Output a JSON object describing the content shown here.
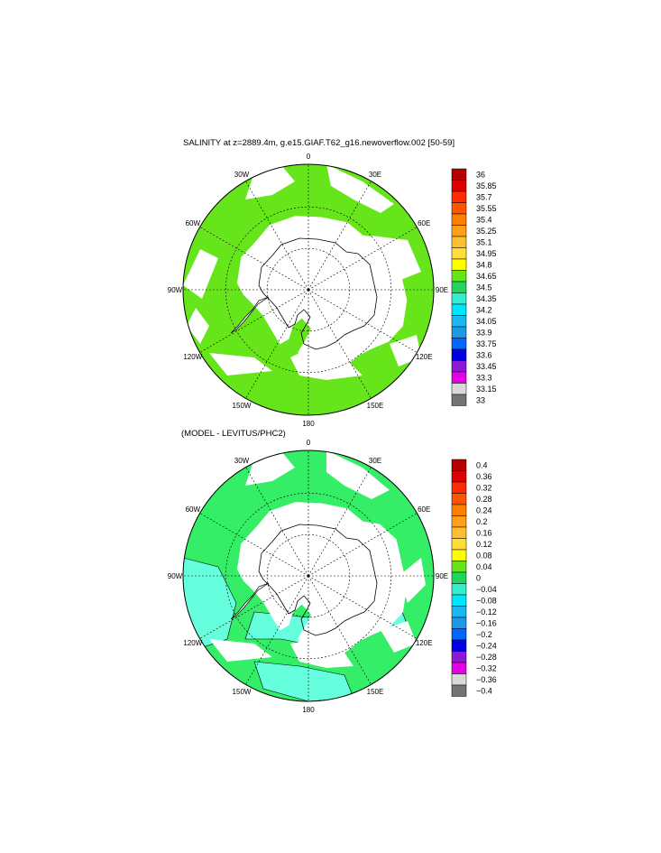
{
  "panels": [
    {
      "id": "salinity",
      "title": "SALINITY at z=2889.4m, g.e15.GIAF.T62_g16.newoverflow.002 [50-59]",
      "longitude_labels": [
        "0",
        "30E",
        "60E",
        "90E",
        "120E",
        "150E",
        "180",
        "150W",
        "120W",
        "90W",
        "60W",
        "30W"
      ],
      "colorbar": {
        "labels": [
          "36",
          "35.85",
          "35.7",
          "35.55",
          "35.4",
          "35.25",
          "35.1",
          "34.95",
          "34.8",
          "34.65",
          "34.5",
          "34.35",
          "34.2",
          "34.05",
          "33.9",
          "33.75",
          "33.6",
          "33.45",
          "33.3",
          "33.15",
          "33"
        ],
        "colors": [
          "#b40000",
          "#dc0000",
          "#ff2a00",
          "#ff5500",
          "#ff7f00",
          "#ff9f1a",
          "#ffbf33",
          "#ffdf33",
          "#ffff00",
          "#66e61a",
          "#1fd65a",
          "#33eecc",
          "#00e5ff",
          "#1ab8f0",
          "#1a99e6",
          "#0066ff",
          "#0000e0",
          "#8a1ad6",
          "#e600e6",
          "#d9d9d9",
          "#737373"
        ]
      },
      "ocean_color": "#66e61a",
      "secondary_color": "#ffffff"
    },
    {
      "id": "difference",
      "title": "(MODEL - LEVITUS/PHC2)",
      "longitude_labels": [
        "0",
        "30E",
        "60E",
        "90E",
        "120E",
        "150E",
        "180",
        "150W",
        "120W",
        "90W",
        "60W",
        "30W"
      ],
      "colorbar": {
        "labels": [
          "0.4",
          "0.36",
          "0.32",
          "0.28",
          "0.24",
          "0.2",
          "0.16",
          "0.12",
          "0.08",
          "0.04",
          "0",
          "−0.04",
          "−0.08",
          "−0.12",
          "−0.16",
          "−0.2",
          "−0.24",
          "−0.28",
          "−0.32",
          "−0.36",
          "−0.4"
        ],
        "colors": [
          "#b40000",
          "#dc0000",
          "#ff2a00",
          "#ff5500",
          "#ff7f00",
          "#ff9f1a",
          "#ffbf33",
          "#ffdf33",
          "#ffff00",
          "#66e61a",
          "#1fd65a",
          "#33eecc",
          "#00e5ff",
          "#1ab8f0",
          "#1a99e6",
          "#0066ff",
          "#0000e0",
          "#8a1ad6",
          "#e600e6",
          "#d9d9d9",
          "#737373"
        ]
      },
      "ocean_color": "#33ee66",
      "secondary_color": "#66ffdd"
    }
  ]
}
